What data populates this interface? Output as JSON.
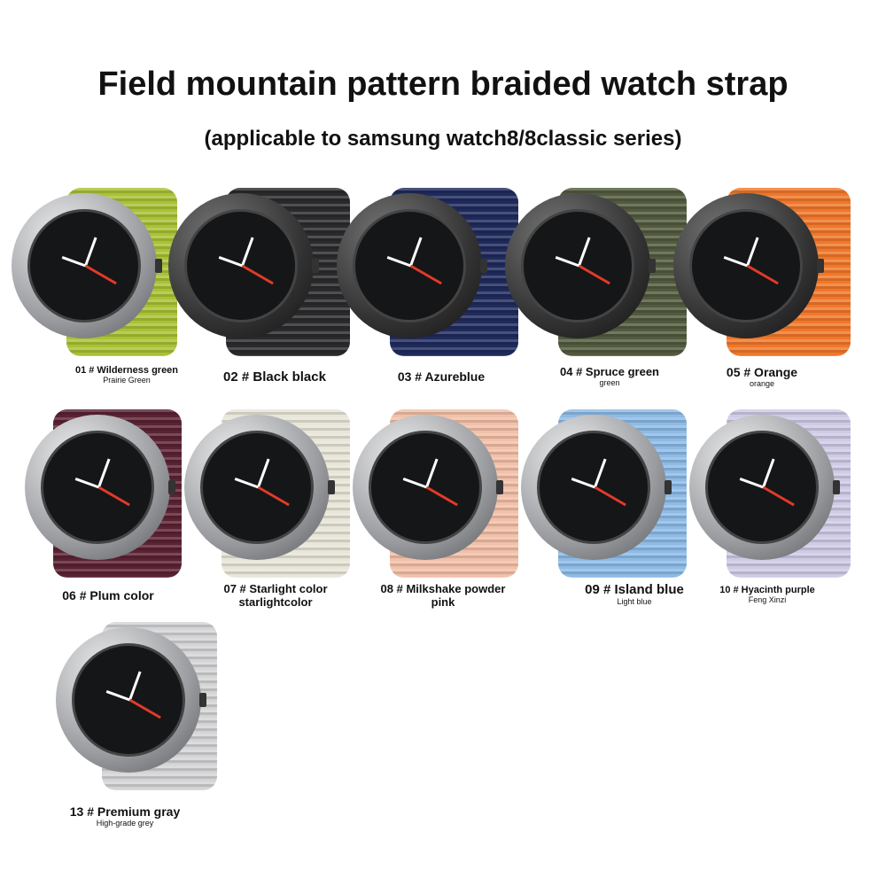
{
  "title": "Field mountain pattern braided watch strap",
  "subtitle": "(applicable to samsung watch8/8classic series)",
  "products": [
    {
      "label": "01 # Wilderness green",
      "sublabel": "Prairie Green",
      "color": "#a8c234",
      "case": "silver"
    },
    {
      "label": "02 # Black black",
      "sublabel": "",
      "color": "#2a2a2c",
      "case": "dark"
    },
    {
      "label": "03 # Azureblue",
      "sublabel": "",
      "color": "#1f2a5c",
      "case": "dark"
    },
    {
      "label": "04 # Spruce green",
      "sublabel": "green",
      "color": "#525a3e",
      "case": "dark"
    },
    {
      "label": "05 # Orange",
      "sublabel": "orange",
      "color": "#f0772a",
      "case": "dark"
    },
    {
      "label": "06 # Plum color",
      "sublabel": "",
      "color": "#5a2233",
      "case": "silver"
    },
    {
      "label": "07 # Starlight color",
      "sublabel": "starlightcolor",
      "color": "#e8e6d8",
      "case": "silver"
    },
    {
      "label": "08 # Milkshake powder",
      "sublabel": "pink",
      "color": "#f2c0a8",
      "case": "silver"
    },
    {
      "label": "09 # Island blue",
      "sublabel": "Light blue",
      "color": "#8dbbe6",
      "case": "silver"
    },
    {
      "label": "10 # Hyacinth purple",
      "sublabel": "Feng Xinzi",
      "color": "#cfcbe6",
      "case": "silver"
    },
    {
      "label": "13 # Premium gray",
      "sublabel": "High-grade grey",
      "color": "#d4d4d6",
      "case": "silver"
    }
  ]
}
